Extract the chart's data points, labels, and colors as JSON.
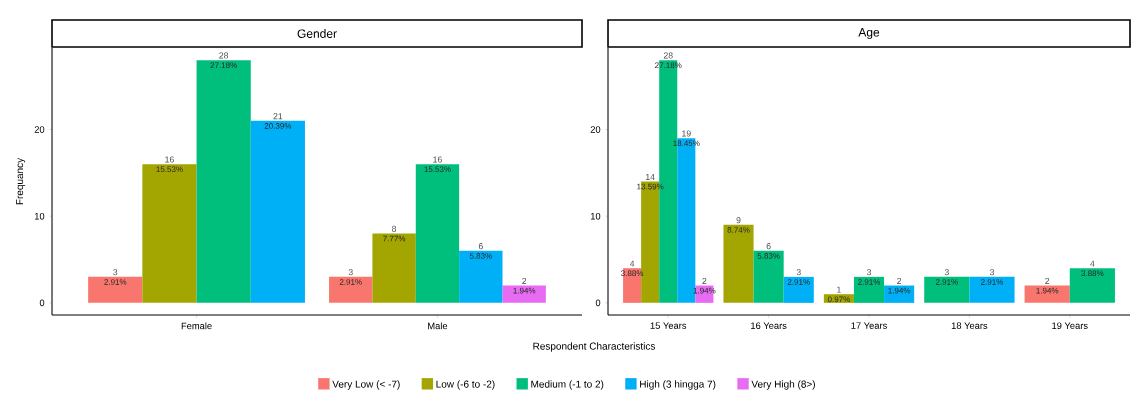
{
  "chart_data": [
    {
      "type": "bar",
      "title": "Gender",
      "xlabel": "Respondent Characteristics",
      "ylabel": "Frequancy",
      "categories": [
        "Female",
        "Male"
      ],
      "ylim": [
        -1.4,
        29.4
      ],
      "yticks": [
        0,
        10,
        20
      ],
      "legend": "bottom",
      "data_labels": true,
      "grid": false,
      "series": [
        {
          "name": "Very Low (< -7)",
          "color": "#f8766d",
          "values": [
            3,
            3
          ]
        },
        {
          "name": "Low (-6 to -2)",
          "color": "#a3a500",
          "values": [
            16,
            8
          ]
        },
        {
          "name": "Medium (-1 to 2)",
          "color": "#00bf7d",
          "values": [
            28,
            16
          ]
        },
        {
          "name": "High (3 hingga 7)",
          "color": "#00b0f6",
          "values": [
            21,
            6
          ]
        },
        {
          "name": "Very High (8>)",
          "color": "#e76bf3",
          "values": [
            null,
            2
          ]
        }
      ],
      "annotations": [
        "2.91%",
        "15.53%",
        "27.18%",
        "20.39%",
        "2.91%",
        "7.77%",
        "15.53%",
        "5.83%",
        "1.94%"
      ]
    },
    {
      "type": "bar",
      "title": "Age",
      "categories": [
        "15 Years",
        "16 Years",
        "17 Years",
        "18 Years",
        "19 Years"
      ],
      "ylim": [
        -1.4,
        29.4
      ],
      "yticks": [
        0,
        10,
        20
      ],
      "data_labels": true,
      "grid": false,
      "series": [
        {
          "color": "#f8766d",
          "values": [
            4,
            null,
            null,
            null,
            2
          ]
        },
        {
          "color": "#a3a500",
          "values": [
            14,
            9,
            1,
            null,
            null
          ]
        },
        {
          "color": "#00bf7d",
          "values": [
            28,
            6,
            3,
            3,
            4
          ]
        },
        {
          "color": "#00b0f6",
          "values": [
            19,
            3,
            2,
            3,
            null
          ]
        },
        {
          "color": "#e76bf3",
          "values": [
            2,
            null,
            null,
            null,
            null
          ]
        }
      ],
      "annotations": [
        "3.88%",
        "13.59%",
        "27.18%",
        "18.45%",
        "1.94%",
        "8.74%",
        "5.83%",
        "2.91%",
        "0.97%",
        "2.91%",
        "1.94%",
        "2.91%",
        "2.91%",
        "1.94%",
        "3.88%"
      ]
    }
  ]
}
